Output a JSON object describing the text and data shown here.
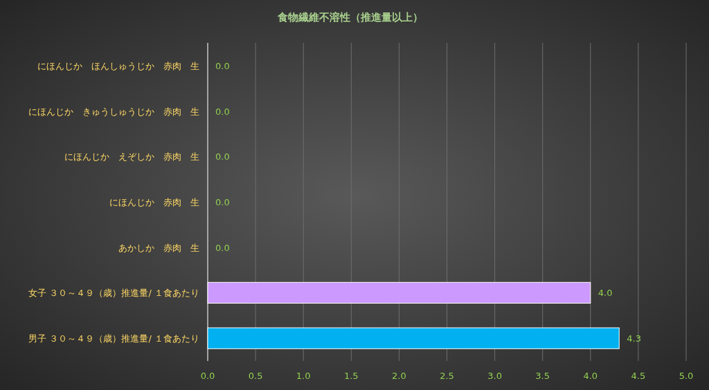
{
  "chart_data": {
    "type": "bar",
    "orientation": "horizontal",
    "title": "食物繊維不溶性（推進量以上）",
    "categories": [
      "にほんじか　ほんしゅうじか　赤肉　生",
      "にほんじか　きゅうしゅうじか　赤肉　生",
      "にほんじか　えぞしか　赤肉　生",
      "にほんじか　赤肉　生",
      "あかしか　赤肉　生",
      "女子 ３０～４９（歳）推進量/ １食あたり",
      "男子 ３０～４９（歳）推進量/ １食あたり"
    ],
    "values": [
      0,
      0,
      0,
      0,
      0,
      4.0,
      4.3
    ],
    "value_labels": [
      "0.0",
      "0.0",
      "0.0",
      "0.0",
      "0.0",
      "4.0",
      "4.3"
    ],
    "colors": [
      "#5b9bd5",
      "#5b9bd5",
      "#5b9bd5",
      "#5b9bd5",
      "#5b9bd5",
      "#cc99ff",
      "#00b0f0"
    ],
    "xlim": [
      0,
      5
    ],
    "xticks": [
      {
        "value": 0,
        "label": "0.0"
      },
      {
        "value": 0.5,
        "label": "0.5"
      },
      {
        "value": 1,
        "label": "1.0"
      },
      {
        "value": 1.5,
        "label": "1.5"
      },
      {
        "value": 2,
        "label": "2.0"
      },
      {
        "value": 2.5,
        "label": "2.5"
      },
      {
        "value": 3,
        "label": "3.0"
      },
      {
        "value": 3.5,
        "label": "3.5"
      },
      {
        "value": 4,
        "label": "4.0"
      },
      {
        "value": 4.5,
        "label": "4.5"
      },
      {
        "value": 5,
        "label": "5.0"
      }
    ],
    "grid": "x"
  }
}
